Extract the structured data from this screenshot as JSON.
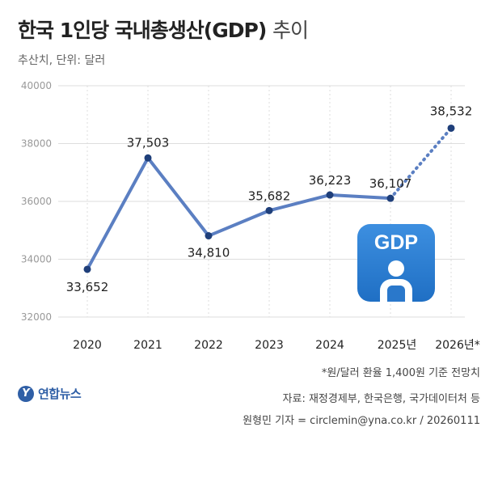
{
  "header": {
    "title_main": "한국 1인당 국내총생산(GDP)",
    "title_suffix": "추이",
    "subtitle": "추산치, 단위: 달러"
  },
  "footer": {
    "footnote": "*원/달러 환율 1,400원 기준 전망치",
    "source": "자료: 재정경제부, 한국은행, 국가데이터처 등",
    "credit": "원형민 기자 = circlemin@yna.co.kr / 20260111",
    "logo_text": "연합뉴스"
  },
  "icon": {
    "label": "GDP",
    "name": "gdp-person-icon"
  },
  "colors": {
    "line": "#5b7fc2",
    "point": "#1f3f7a",
    "grid": "#dddddd",
    "accent": "#2f5fa6"
  },
  "chart_data": {
    "type": "line",
    "categories": [
      "2020",
      "2021",
      "2022",
      "2023",
      "2024",
      "2025년",
      "2026년*"
    ],
    "values": [
      33652,
      37503,
      34810,
      35682,
      36223,
      36107,
      38532
    ],
    "data_labels": [
      "33,652",
      "37,503",
      "34,810",
      "35,682",
      "36,223",
      "36,107",
      "38,532"
    ],
    "yticks": [
      "40000",
      "38000",
      "36000",
      "34000",
      "32000"
    ],
    "ytick_values": [
      40000,
      38000,
      36000,
      34000,
      32000
    ],
    "ylim": [
      32000,
      40000
    ],
    "projected_from_index": 5,
    "grid": true
  }
}
